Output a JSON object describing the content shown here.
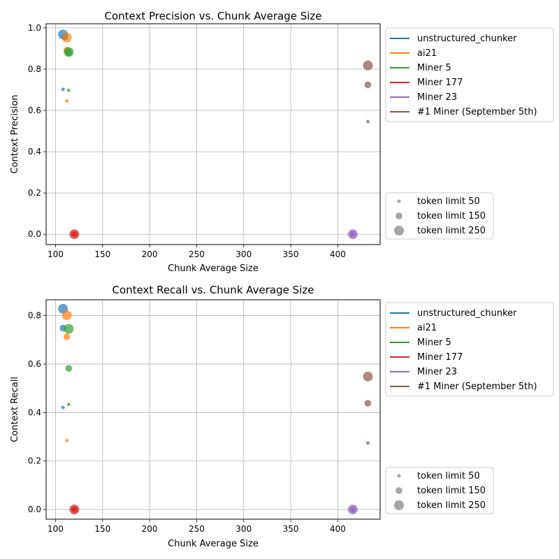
{
  "series_names": [
    "unstructured_chunker",
    "ai21",
    "Miner 5",
    "Miner 177",
    "Miner 23",
    "#1 Miner (September 5th)"
  ],
  "series_colors": [
    "#1f77b4",
    "#ff7f0e",
    "#2ca02c",
    "#d62728",
    "#9467bd",
    "#8c564b"
  ],
  "size_legend": [
    "token limit 50",
    "token limit 150",
    "token limit 250"
  ],
  "chart_data": [
    {
      "type": "scatter",
      "title": "Context Precision vs. Chunk Average Size",
      "xlabel": "Chunk Average Size",
      "ylabel": "Context Precision",
      "xlim": [
        90,
        445
      ],
      "ylim": [
        -0.05,
        1.02
      ],
      "xticks": [
        100,
        150,
        200,
        250,
        300,
        350,
        400
      ],
      "xtick_labels": [
        "100",
        "150",
        "200",
        "250",
        "300",
        "350",
        "400"
      ],
      "yticks": [
        0.0,
        0.2,
        0.4,
        0.6,
        0.8,
        1.0
      ],
      "ytick_labels": [
        "0.0",
        "0.2",
        "0.4",
        "0.6",
        "0.8",
        "1.0"
      ],
      "grid": true,
      "legend_placement": "outside-right",
      "series": [
        {
          "name": "unstructured_chunker",
          "points": [
            {
              "x": 108,
              "y": 0.702,
              "token_limit": 50
            },
            {
              "x": 110,
              "y": 0.955,
              "token_limit": 150
            },
            {
              "x": 108,
              "y": 0.968,
              "token_limit": 250
            }
          ]
        },
        {
          "name": "ai21",
          "points": [
            {
              "x": 112,
              "y": 0.646,
              "token_limit": 50
            },
            {
              "x": 112,
              "y": 0.892,
              "token_limit": 150
            },
            {
              "x": 112,
              "y": 0.953,
              "token_limit": 250
            }
          ]
        },
        {
          "name": "Miner 5",
          "points": [
            {
              "x": 114,
              "y": 0.697,
              "token_limit": 50
            },
            {
              "x": 114,
              "y": 0.88,
              "token_limit": 150
            },
            {
              "x": 114,
              "y": 0.883,
              "token_limit": 250
            }
          ]
        },
        {
          "name": "Miner 177",
          "points": [
            {
              "x": 120,
              "y": 0.0,
              "token_limit": 50
            },
            {
              "x": 120,
              "y": 0.0,
              "token_limit": 150
            },
            {
              "x": 120,
              "y": 0.0,
              "token_limit": 250
            }
          ]
        },
        {
          "name": "Miner 23",
          "points": [
            {
              "x": 416,
              "y": 0.0,
              "token_limit": 50
            },
            {
              "x": 416,
              "y": 0.0,
              "token_limit": 150
            },
            {
              "x": 416,
              "y": 0.0,
              "token_limit": 250
            }
          ]
        },
        {
          "name": "#1 Miner (September 5th)",
          "points": [
            {
              "x": 432,
              "y": 0.546,
              "token_limit": 50
            },
            {
              "x": 432,
              "y": 0.724,
              "token_limit": 150
            },
            {
              "x": 432,
              "y": 0.818,
              "token_limit": 250
            }
          ]
        }
      ]
    },
    {
      "type": "scatter",
      "title": "Context Recall vs. Chunk Average Size",
      "xlabel": "Chunk Average Size",
      "ylabel": "Context Recall",
      "xlim": [
        90,
        445
      ],
      "ylim": [
        -0.04,
        0.865
      ],
      "xticks": [
        100,
        150,
        200,
        250,
        300,
        350,
        400
      ],
      "xtick_labels": [
        "100",
        "150",
        "200",
        "250",
        "300",
        "350",
        "400"
      ],
      "yticks": [
        0.0,
        0.2,
        0.4,
        0.6,
        0.8
      ],
      "ytick_labels": [
        "0.0",
        "0.2",
        "0.4",
        "0.6",
        "0.8"
      ],
      "grid": true,
      "legend_placement": "outside-right",
      "series": [
        {
          "name": "unstructured_chunker",
          "points": [
            {
              "x": 108,
              "y": 0.421,
              "token_limit": 50
            },
            {
              "x": 108,
              "y": 0.748,
              "token_limit": 150
            },
            {
              "x": 108,
              "y": 0.828,
              "token_limit": 250
            }
          ]
        },
        {
          "name": "ai21",
          "points": [
            {
              "x": 112,
              "y": 0.284,
              "token_limit": 50
            },
            {
              "x": 112,
              "y": 0.712,
              "token_limit": 150
            },
            {
              "x": 112,
              "y": 0.801,
              "token_limit": 250
            }
          ]
        },
        {
          "name": "Miner 5",
          "points": [
            {
              "x": 114,
              "y": 0.433,
              "token_limit": 50
            },
            {
              "x": 114,
              "y": 0.582,
              "token_limit": 150
            },
            {
              "x": 114,
              "y": 0.745,
              "token_limit": 250
            }
          ]
        },
        {
          "name": "Miner 177",
          "points": [
            {
              "x": 120,
              "y": 0.0,
              "token_limit": 50
            },
            {
              "x": 120,
              "y": 0.0,
              "token_limit": 150
            },
            {
              "x": 120,
              "y": 0.0,
              "token_limit": 250
            }
          ]
        },
        {
          "name": "Miner 23",
          "points": [
            {
              "x": 416,
              "y": 0.0,
              "token_limit": 50
            },
            {
              "x": 416,
              "y": 0.0,
              "token_limit": 150
            },
            {
              "x": 416,
              "y": 0.0,
              "token_limit": 250
            }
          ]
        },
        {
          "name": "#1 Miner (September 5th)",
          "points": [
            {
              "x": 432,
              "y": 0.274,
              "token_limit": 50
            },
            {
              "x": 432,
              "y": 0.438,
              "token_limit": 150
            },
            {
              "x": 432,
              "y": 0.548,
              "token_limit": 250
            }
          ]
        }
      ]
    }
  ]
}
